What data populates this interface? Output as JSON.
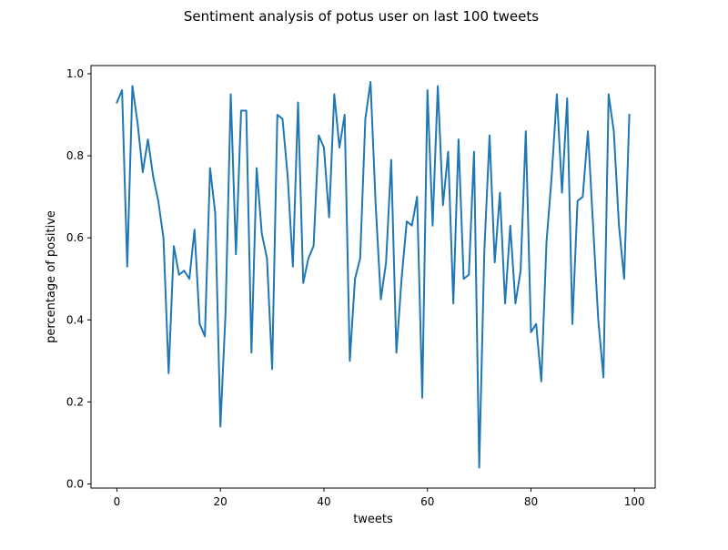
{
  "chart_data": {
    "type": "line",
    "title": "Sentiment analysis of potus user on last 100 tweets",
    "xlabel": "tweets",
    "ylabel": "percentage of positive",
    "xlim": [
      -5,
      104
    ],
    "ylim": [
      -0.01,
      1.02
    ],
    "xticks": [
      0,
      20,
      40,
      60,
      80,
      100
    ],
    "yticks": [
      0.0,
      0.2,
      0.4,
      0.6,
      0.8,
      1.0
    ],
    "x_tick_labels": [
      "0",
      "20",
      "40",
      "60",
      "80",
      "100"
    ],
    "y_tick_labels": [
      "0.0",
      "0.2",
      "0.4",
      "0.6",
      "0.8",
      "1.0"
    ],
    "grid": false,
    "legend": null,
    "series": [
      {
        "name": "percentage of positive",
        "color": "#1f77b4",
        "x": [
          0,
          1,
          2,
          3,
          4,
          5,
          6,
          7,
          8,
          9,
          10,
          11,
          12,
          13,
          14,
          15,
          16,
          17,
          18,
          19,
          20,
          21,
          22,
          23,
          24,
          25,
          26,
          27,
          28,
          29,
          30,
          31,
          32,
          33,
          34,
          35,
          36,
          37,
          38,
          39,
          40,
          41,
          42,
          43,
          44,
          45,
          46,
          47,
          48,
          49,
          50,
          51,
          52,
          53,
          54,
          55,
          56,
          57,
          58,
          59,
          60,
          61,
          62,
          63,
          64,
          65,
          66,
          67,
          68,
          69,
          70,
          71,
          72,
          73,
          74,
          75,
          76,
          77,
          78,
          79,
          80,
          81,
          82,
          83,
          84,
          85,
          86,
          87,
          88,
          89,
          90,
          91,
          92,
          93,
          94,
          95,
          96,
          97,
          98,
          99
        ],
        "values": [
          0.93,
          0.96,
          0.53,
          0.97,
          0.88,
          0.76,
          0.84,
          0.75,
          0.69,
          0.6,
          0.27,
          0.58,
          0.51,
          0.52,
          0.5,
          0.62,
          0.39,
          0.36,
          0.77,
          0.66,
          0.14,
          0.42,
          0.95,
          0.56,
          0.91,
          0.91,
          0.32,
          0.77,
          0.61,
          0.55,
          0.28,
          0.9,
          0.89,
          0.75,
          0.53,
          0.93,
          0.49,
          0.55,
          0.58,
          0.85,
          0.82,
          0.65,
          0.95,
          0.82,
          0.9,
          0.3,
          0.5,
          0.55,
          0.89,
          0.98,
          0.68,
          0.45,
          0.54,
          0.79,
          0.32,
          0.5,
          0.64,
          0.63,
          0.7,
          0.21,
          0.96,
          0.63,
          0.97,
          0.68,
          0.81,
          0.44,
          0.84,
          0.5,
          0.51,
          0.81,
          0.04,
          0.57,
          0.85,
          0.54,
          0.71,
          0.44,
          0.63,
          0.44,
          0.52,
          0.86,
          0.37,
          0.39,
          0.25,
          0.59,
          0.75,
          0.95,
          0.71,
          0.94,
          0.39,
          0.69,
          0.7,
          0.86,
          0.63,
          0.4,
          0.26,
          0.95,
          0.86,
          0.63,
          0.5,
          0.9
        ]
      }
    ]
  }
}
